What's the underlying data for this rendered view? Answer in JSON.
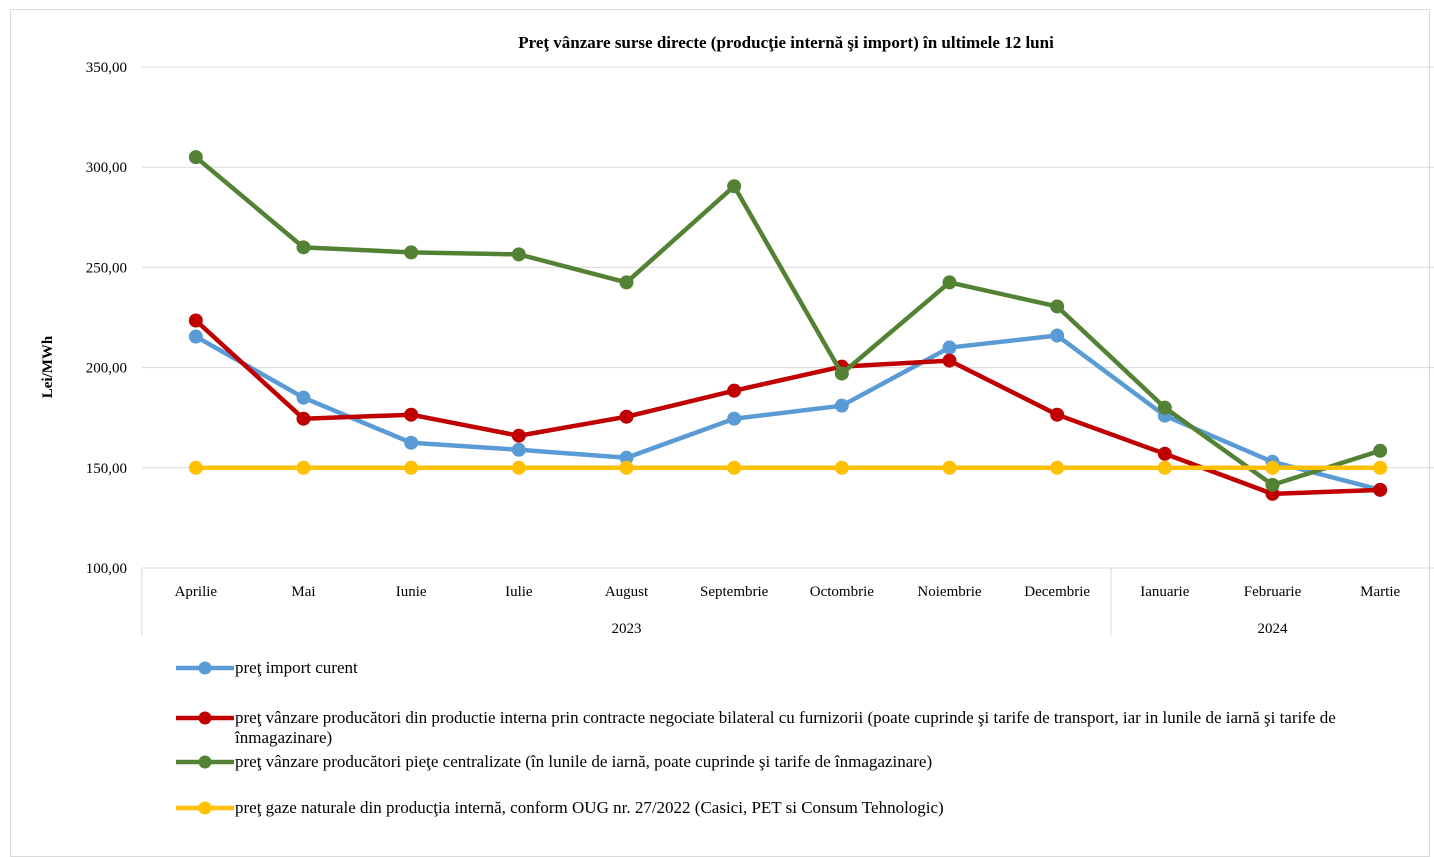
{
  "chart_data": {
    "type": "line",
    "title": "Preţ vânzare surse directe (producţie internă şi import) în ultimele 12 luni",
    "ylabel": "Lei/MWh",
    "xlabel": "",
    "ylim": [
      100,
      350
    ],
    "yticks": [
      "100,00",
      "150,00",
      "200,00",
      "250,00",
      "300,00",
      "350,00"
    ],
    "ytick_values": [
      100,
      150,
      200,
      250,
      300,
      350
    ],
    "categories": [
      "Aprilie",
      "Mai",
      "Iunie",
      "Iulie",
      "August",
      "Septembrie",
      "Octombrie",
      "Noiembrie",
      "Decembrie",
      "Ianuarie",
      "Februarie",
      "Martie"
    ],
    "groups": [
      {
        "label": "2023",
        "count": 9
      },
      {
        "label": "2024",
        "count": 3
      }
    ],
    "grid": true,
    "legend_position": "bottom",
    "series": [
      {
        "name": "preţ import curent",
        "color": "#5b9bd5",
        "values": [
          215.5,
          185,
          162.5,
          159,
          155,
          174.5,
          181,
          210,
          216,
          176,
          153,
          139
        ]
      },
      {
        "name": "preţ vânzare producători din productie interna prin contracte negociate bilateral cu furnizorii (poate cuprinde şi tarife de transport, iar in lunile de iarnă şi tarife de înmagazinare)",
        "color": "#c00000",
        "values": [
          223.5,
          174.5,
          176.5,
          166,
          175.5,
          188.5,
          200.5,
          203.5,
          176.5,
          157,
          137,
          139
        ]
      },
      {
        "name": "preţ vânzare producători pieţe centralizate (în lunile de iarnă, poate cuprinde şi tarife de înmagazinare)",
        "color": "#548235",
        "values": [
          305,
          260,
          257.5,
          256.5,
          242.5,
          290.5,
          197,
          242.5,
          230.5,
          180,
          141.5,
          158.5
        ]
      },
      {
        "name": "preţ gaze naturale din producţia internă, conform OUG nr. 27/2022 (Casici, PET si Consum Tehnologic)",
        "color": "#ffc000",
        "values": [
          150,
          150,
          150,
          150,
          150,
          150,
          150,
          150,
          150,
          150,
          150,
          150
        ]
      }
    ]
  }
}
